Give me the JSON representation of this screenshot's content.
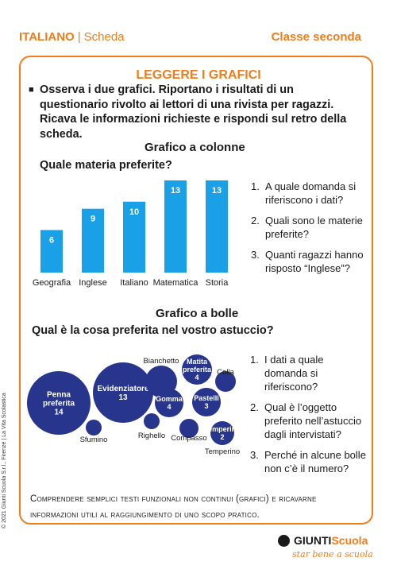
{
  "header": {
    "subject": "ITALIANO",
    "separator": "|",
    "type": "Scheda",
    "class_level": "Classe seconda"
  },
  "title": "LEGGERE I GRAFICI",
  "intro": "Osserva i due grafici. Riportano i risultati di un questionario rivolto ai lettori di una rivista per ragazzi. Ricava le informazioni richieste e rispondi sul retro della scheda.",
  "bar_section": {
    "heading": "Grafico a colonne",
    "question": "Quale materia preferite?",
    "questions": [
      "A quale domanda si riferiscono i dati?",
      "Quali sono le materie preferite?",
      "Quanti ragazzi hanno risposto “Inglese”?"
    ]
  },
  "bubble_section": {
    "heading": "Grafico a bolle",
    "question": "Qual è la cosa preferita nel vostro astuccio?",
    "questions": [
      "I dati a quale domanda si riferiscono?",
      "Qual è l’oggetto preferito nell’astuccio dagli intervistati?",
      "Perché in alcune bolle non c’è il numero?"
    ]
  },
  "footer": "Comprendere semplici testi funzionali non continui (grafici) e ricavarne informazioni utili al raggiungimento di uno scopo pratico.",
  "copyright": "© 2021 Giunti Scuola S.r.l., Firenze | La Vita Scolastica",
  "logo": {
    "brand1": "GIUNTI",
    "brand2": "Scuola",
    "tagline": "star bene a scuola"
  },
  "colors": {
    "accent": "#f07d1a",
    "bar": "#1aa0e6",
    "bubble": "#27358c"
  },
  "chart_data": [
    {
      "type": "bar",
      "title": "Quale materia preferite?",
      "categories": [
        "Geografia",
        "Inglese",
        "Italiano",
        "Matematica",
        "Storia"
      ],
      "values": [
        6,
        9,
        10,
        13,
        13
      ],
      "ylim": [
        0,
        13
      ],
      "grid": false
    },
    {
      "type": "scatter",
      "title": "Qual è la cosa preferita nel vostro astuccio?",
      "points": [
        {
          "label": "Penna preferita",
          "value": 14
        },
        {
          "label": "Evidenziatore",
          "value": 13
        },
        {
          "label": "Bianchetto",
          "value": null
        },
        {
          "label": "Matita preferita",
          "value": 4
        },
        {
          "label": "Colla",
          "value": null
        },
        {
          "label": "Gomma",
          "value": 4
        },
        {
          "label": "Pastelli",
          "value": 3
        },
        {
          "label": "Sfumino",
          "value": null
        },
        {
          "label": "Righello",
          "value": null
        },
        {
          "label": "Compasso",
          "value": null
        },
        {
          "label": "Temperino",
          "value": 2
        }
      ]
    }
  ]
}
